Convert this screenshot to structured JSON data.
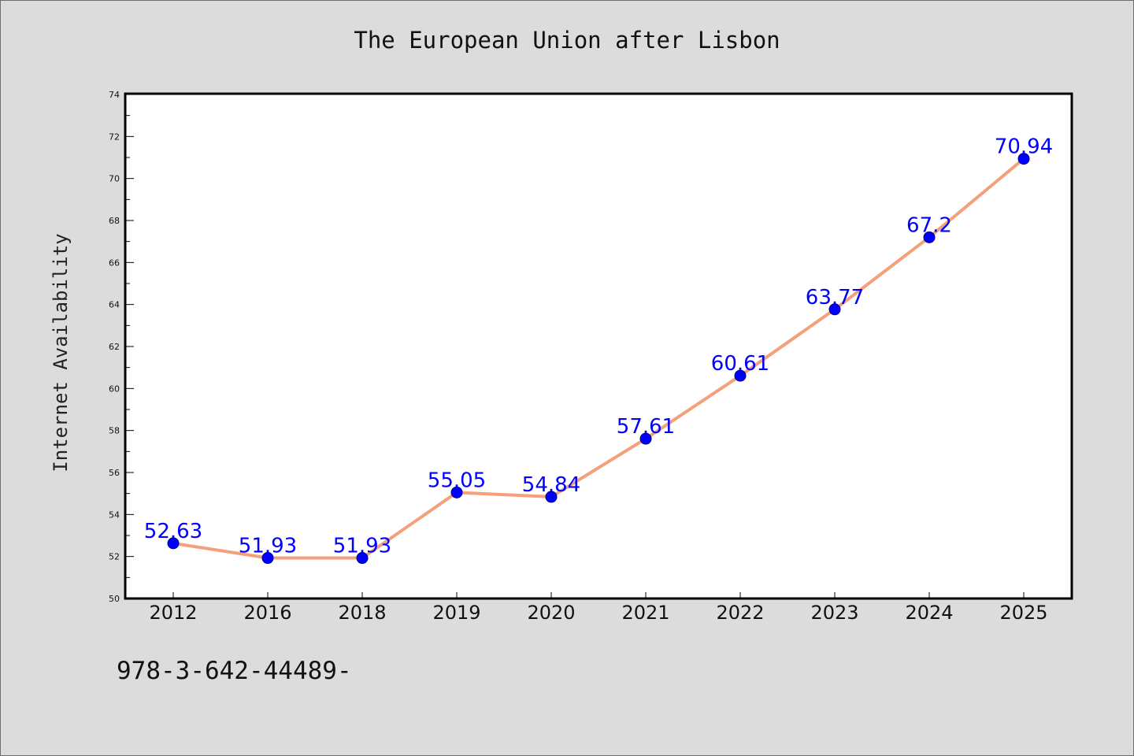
{
  "chart_data": {
    "type": "line",
    "title": "The European Union after Lisbon",
    "xlabel": "",
    "ylabel": "Internet Availability",
    "categories": [
      "2012",
      "2016",
      "2018",
      "2019",
      "2020",
      "2021",
      "2022",
      "2023",
      "2024",
      "2025"
    ],
    "series": [
      {
        "values": [
          52.63,
          51.93,
          51.93,
          55.05,
          54.84,
          57.61,
          60.61,
          63.77,
          67.2,
          70.94
        ],
        "line_color": "#f4a07a",
        "marker_color": "#0000ff"
      }
    ],
    "data_labels": [
      "52.63",
      "51.93",
      "51.93",
      "55.05",
      "54.84",
      "57.61",
      "60.61",
      "63.77",
      "67.2",
      "70.94"
    ],
    "ylim": [
      50,
      74
    ],
    "yticks": [
      "50",
      "52",
      "54",
      "56",
      "58",
      "60",
      "62",
      "64",
      "66",
      "68",
      "70",
      "72",
      "74"
    ],
    "grid": false,
    "background": "#dcdcdc",
    "plot_background": "#ffffff"
  },
  "footer_text": "978-3-642-44489-"
}
